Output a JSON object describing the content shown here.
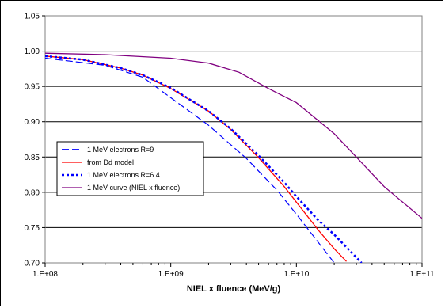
{
  "chart_data": {
    "type": "line",
    "title": "",
    "xlabel": "NIEL x fluence (MeV/g)",
    "ylabel": "",
    "x_scale": "log",
    "xlim": [
      100000000.0,
      100000000000.0
    ],
    "ylim": [
      0.7,
      1.05
    ],
    "x_ticks": [
      "1.E+08",
      "1.E+09",
      "1.E+10",
      "1.E+11"
    ],
    "y_ticks": [
      "0.70",
      "0.75",
      "0.80",
      "0.85",
      "0.90",
      "0.95",
      "1.00",
      "1.05"
    ],
    "grid": "horizontal",
    "legend_position": "left-center",
    "series": [
      {
        "name": "1 MeV electrons R=9",
        "color": "#0000ff",
        "style": "long-dash",
        "x": [
          100000000.0,
          300000000.0,
          600000000.0,
          1000000000.0,
          2000000000.0,
          4000000000.0,
          7000000000.0,
          10000000000.0,
          20000000000.0
        ],
        "y": [
          0.99,
          0.98,
          0.963,
          0.934,
          0.895,
          0.848,
          0.803,
          0.769,
          0.7
        ]
      },
      {
        "name": "from Dd model",
        "color": "#ff0000",
        "style": "solid",
        "x": [
          100000000.0,
          200000000.0,
          400000000.0,
          600000000.0,
          1000000000.0,
          2000000000.0,
          3000000000.0,
          5000000000.0,
          8000000000.0,
          10000000000.0,
          15000000000.0,
          20000000000.0,
          25000000000.0
        ],
        "y": [
          0.993,
          0.988,
          0.976,
          0.966,
          0.947,
          0.915,
          0.889,
          0.849,
          0.808,
          0.786,
          0.746,
          0.72,
          0.702
        ]
      },
      {
        "name": "1 MeV electrons R=6.4",
        "color": "#0000ff",
        "style": "dotted",
        "x": [
          100000000.0,
          200000000.0,
          400000000.0,
          600000000.0,
          1000000000.0,
          2000000000.0,
          3000000000.0,
          5000000000.0,
          8000000000.0,
          10000000000.0,
          15000000000.0,
          20000000000.0,
          33000000000.0
        ],
        "y": [
          0.993,
          0.988,
          0.976,
          0.966,
          0.948,
          0.915,
          0.89,
          0.852,
          0.814,
          0.794,
          0.76,
          0.74,
          0.7
        ]
      },
      {
        "name": "1 MeV curve (NIEL x fluence)",
        "color": "#800080",
        "style": "solid",
        "x": [
          100000000.0,
          300000000.0,
          1000000000.0,
          2000000000.0,
          3500000000.0,
          6000000000.0,
          10000000000.0,
          20000000000.0,
          30000000000.0,
          50000000000.0,
          100000000000.0
        ],
        "y": [
          0.997,
          0.995,
          0.99,
          0.983,
          0.97,
          0.947,
          0.927,
          0.883,
          0.85,
          0.808,
          0.763
        ]
      }
    ]
  }
}
